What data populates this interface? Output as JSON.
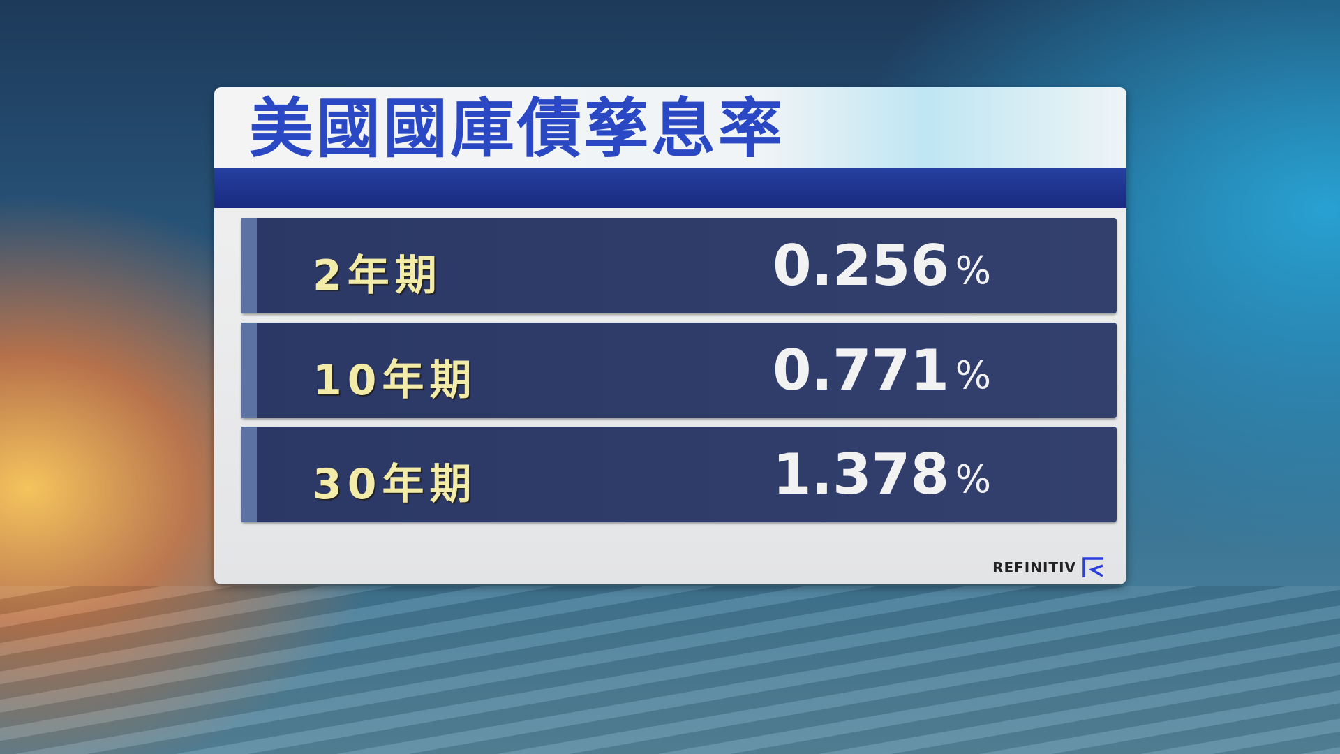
{
  "title": "美國國庫債孳息率",
  "rows": [
    {
      "label": "2年期",
      "value": "0.256",
      "unit": "%"
    },
    {
      "label": "10年期",
      "value": "0.771",
      "unit": "%"
    },
    {
      "label": "30年期",
      "value": "1.378",
      "unit": "%"
    }
  ],
  "logo": {
    "text": "REFINITIV",
    "icon": "refinitiv-logo-icon",
    "color": "#2b3ee0"
  },
  "colors": {
    "title": "#2a48c4",
    "label": "#f3eca8",
    "row_bg": "#2b3866"
  }
}
